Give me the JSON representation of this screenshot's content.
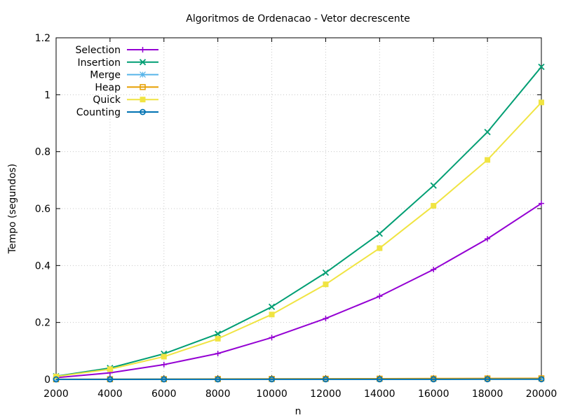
{
  "chart_data": {
    "type": "line",
    "title": "Algoritmos de Ordenacao - Vetor decrescente",
    "xlabel": "n",
    "ylabel": "Tempo (segundos)",
    "xlim": [
      2000,
      20000
    ],
    "ylim": [
      0,
      1.2
    ],
    "x_ticks": [
      "2000",
      "4000",
      "6000",
      "8000",
      "10000",
      "12000",
      "14000",
      "16000",
      "18000",
      "20000"
    ],
    "y_ticks": [
      "0",
      "0.2",
      "0.4",
      "0.6",
      "0.8",
      "1",
      "1.2"
    ],
    "y_tick_values": [
      0,
      0.2,
      0.4,
      0.6,
      0.8,
      1.0,
      1.2
    ],
    "grid": true,
    "legend_position": "top-left",
    "x": [
      2000,
      4000,
      6000,
      8000,
      10000,
      12000,
      14000,
      16000,
      18000,
      20000
    ],
    "series": [
      {
        "name": "Selection",
        "color": "#9400d3",
        "marker": "plus",
        "values": [
          0.006,
          0.023,
          0.052,
          0.091,
          0.147,
          0.214,
          0.292,
          0.386,
          0.494,
          0.618
        ]
      },
      {
        "name": "Insertion",
        "color": "#009e73",
        "marker": "cross",
        "values": [
          0.011,
          0.04,
          0.09,
          0.16,
          0.255,
          0.375,
          0.512,
          0.681,
          0.869,
          1.098
        ]
      },
      {
        "name": "Merge",
        "color": "#56b4e9",
        "marker": "star",
        "values": [
          0.0003,
          0.0005,
          0.0008,
          0.0011,
          0.0014,
          0.0017,
          0.002,
          0.0023,
          0.0026,
          0.0029
        ]
      },
      {
        "name": "Heap",
        "color": "#e69f00",
        "marker": "square-open",
        "values": [
          0.0004,
          0.0007,
          0.001,
          0.0014,
          0.0018,
          0.0022,
          0.0026,
          0.003,
          0.0034,
          0.0038
        ]
      },
      {
        "name": "Quick",
        "color": "#f0e442",
        "marker": "square-filled",
        "values": [
          0.01,
          0.036,
          0.08,
          0.143,
          0.228,
          0.334,
          0.461,
          0.61,
          0.771,
          0.973
        ]
      },
      {
        "name": "Counting",
        "color": "#0072b2",
        "marker": "circle-open",
        "values": [
          0.0001,
          0.0001,
          0.0002,
          0.0002,
          0.0003,
          0.0003,
          0.0004,
          0.0004,
          0.0005,
          0.0005
        ]
      }
    ]
  }
}
